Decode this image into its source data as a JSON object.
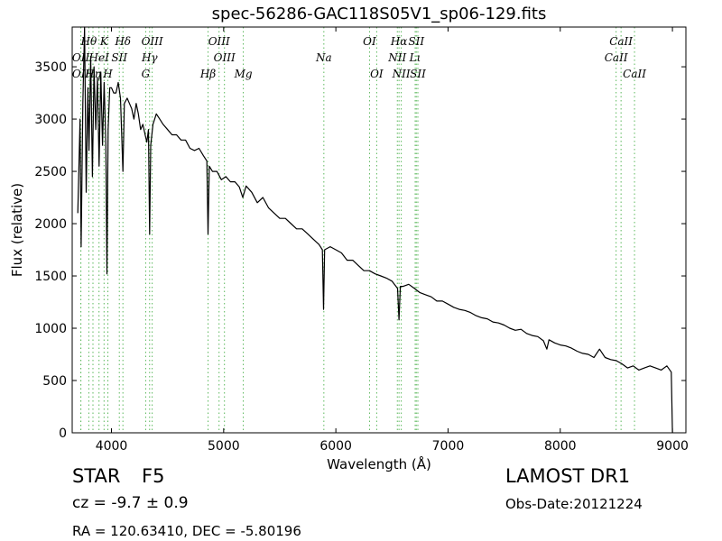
{
  "title": "spec-56286-GAC118S05V1_sp06-129.fits",
  "footer": {
    "object_class": "STAR",
    "subclass": "F5",
    "redshift": "cz = -9.7 ± 0.9",
    "coords": "RA = 120.63410, DEC = -5.80196",
    "survey": "LAMOST DR1",
    "obs_date": "Obs-Date:20121224"
  },
  "chart_data": {
    "type": "line",
    "title": "spec-56286-GAC118S05V1_sp06-129.fits",
    "xlabel": "Wavelength (Å)",
    "ylabel": "Flux (relative)",
    "xlim": [
      3650,
      9120
    ],
    "ylim": [
      0,
      3880
    ],
    "xticks": [
      4000,
      5000,
      6000,
      7000,
      8000,
      9000
    ],
    "yticks": [
      0,
      500,
      1000,
      1500,
      2000,
      2500,
      3000,
      3500
    ],
    "line_color": "#000000",
    "marker_color": "#5cb85c",
    "series": [
      {
        "values": [
          [
            3700,
            2100
          ],
          [
            3720,
            3000
          ],
          [
            3730,
            1780
          ],
          [
            3745,
            3150
          ],
          [
            3760,
            3880
          ],
          [
            3775,
            2300
          ],
          [
            3790,
            3300
          ],
          [
            3800,
            2700
          ],
          [
            3815,
            3600
          ],
          [
            3830,
            2450
          ],
          [
            3845,
            3500
          ],
          [
            3860,
            2900
          ],
          [
            3875,
            3400
          ],
          [
            3890,
            2550
          ],
          [
            3905,
            3450
          ],
          [
            3920,
            2750
          ],
          [
            3935,
            3350
          ],
          [
            3950,
            2750
          ],
          [
            3960,
            1520
          ],
          [
            3970,
            2900
          ],
          [
            3985,
            3300
          ],
          [
            4000,
            3300
          ],
          [
            4020,
            3250
          ],
          [
            4040,
            3250
          ],
          [
            4060,
            3350
          ],
          [
            4080,
            3200
          ],
          [
            4102,
            2500
          ],
          [
            4115,
            3150
          ],
          [
            4140,
            3200
          ],
          [
            4160,
            3150
          ],
          [
            4180,
            3100
          ],
          [
            4200,
            3000
          ],
          [
            4220,
            3150
          ],
          [
            4240,
            3050
          ],
          [
            4260,
            2900
          ],
          [
            4280,
            2950
          ],
          [
            4300,
            2850
          ],
          [
            4315,
            2780
          ],
          [
            4330,
            2900
          ],
          [
            4340,
            1900
          ],
          [
            4350,
            2750
          ],
          [
            4370,
            2950
          ],
          [
            4400,
            3050
          ],
          [
            4430,
            3000
          ],
          [
            4460,
            2950
          ],
          [
            4500,
            2900
          ],
          [
            4540,
            2850
          ],
          [
            4580,
            2850
          ],
          [
            4620,
            2800
          ],
          [
            4660,
            2800
          ],
          [
            4700,
            2720
          ],
          [
            4740,
            2700
          ],
          [
            4780,
            2720
          ],
          [
            4820,
            2650
          ],
          [
            4850,
            2600
          ],
          [
            4861,
            1900
          ],
          [
            4872,
            2550
          ],
          [
            4900,
            2500
          ],
          [
            4940,
            2500
          ],
          [
            4980,
            2420
          ],
          [
            5020,
            2450
          ],
          [
            5060,
            2400
          ],
          [
            5100,
            2400
          ],
          [
            5140,
            2350
          ],
          [
            5170,
            2250
          ],
          [
            5200,
            2360
          ],
          [
            5250,
            2300
          ],
          [
            5300,
            2200
          ],
          [
            5350,
            2250
          ],
          [
            5400,
            2150
          ],
          [
            5450,
            2100
          ],
          [
            5500,
            2050
          ],
          [
            5550,
            2050
          ],
          [
            5600,
            2000
          ],
          [
            5650,
            1950
          ],
          [
            5700,
            1950
          ],
          [
            5750,
            1900
          ],
          [
            5800,
            1850
          ],
          [
            5850,
            1800
          ],
          [
            5880,
            1750
          ],
          [
            5890,
            1180
          ],
          [
            5900,
            1750
          ],
          [
            5950,
            1780
          ],
          [
            6000,
            1750
          ],
          [
            6050,
            1720
          ],
          [
            6100,
            1650
          ],
          [
            6150,
            1650
          ],
          [
            6200,
            1600
          ],
          [
            6250,
            1550
          ],
          [
            6300,
            1550
          ],
          [
            6350,
            1520
          ],
          [
            6400,
            1500
          ],
          [
            6450,
            1480
          ],
          [
            6500,
            1450
          ],
          [
            6550,
            1380
          ],
          [
            6563,
            1080
          ],
          [
            6575,
            1400
          ],
          [
            6600,
            1400
          ],
          [
            6650,
            1420
          ],
          [
            6700,
            1380
          ],
          [
            6750,
            1340
          ],
          [
            6800,
            1320
          ],
          [
            6850,
            1300
          ],
          [
            6900,
            1260
          ],
          [
            6950,
            1260
          ],
          [
            7000,
            1230
          ],
          [
            7050,
            1200
          ],
          [
            7100,
            1180
          ],
          [
            7150,
            1170
          ],
          [
            7200,
            1150
          ],
          [
            7250,
            1120
          ],
          [
            7300,
            1100
          ],
          [
            7350,
            1090
          ],
          [
            7400,
            1060
          ],
          [
            7450,
            1050
          ],
          [
            7500,
            1030
          ],
          [
            7550,
            1000
          ],
          [
            7600,
            980
          ],
          [
            7650,
            990
          ],
          [
            7700,
            950
          ],
          [
            7750,
            930
          ],
          [
            7800,
            920
          ],
          [
            7850,
            880
          ],
          [
            7880,
            800
          ],
          [
            7900,
            890
          ],
          [
            7950,
            860
          ],
          [
            8000,
            840
          ],
          [
            8050,
            830
          ],
          [
            8100,
            810
          ],
          [
            8150,
            780
          ],
          [
            8200,
            760
          ],
          [
            8250,
            750
          ],
          [
            8300,
            720
          ],
          [
            8350,
            800
          ],
          [
            8400,
            720
          ],
          [
            8450,
            700
          ],
          [
            8500,
            690
          ],
          [
            8550,
            660
          ],
          [
            8600,
            620
          ],
          [
            8650,
            640
          ],
          [
            8700,
            600
          ],
          [
            8750,
            620
          ],
          [
            8800,
            640
          ],
          [
            8850,
            620
          ],
          [
            8900,
            600
          ],
          [
            8950,
            640
          ],
          [
            8990,
            580
          ],
          [
            9000,
            0
          ]
        ]
      }
    ],
    "line_markers": [
      {
        "label": "Hθ",
        "x": 3798,
        "row": 0
      },
      {
        "label": "K",
        "x": 3934,
        "row": 0
      },
      {
        "label": "Hδ",
        "x": 4102,
        "row": 0
      },
      {
        "label": "OIII",
        "x": 4363,
        "row": 0
      },
      {
        "label": "OIII",
        "x": 4959,
        "row": 0
      },
      {
        "label": "OI",
        "x": 6300,
        "row": 0
      },
      {
        "label": "Hα",
        "x": 6563,
        "row": 0
      },
      {
        "label": "SII",
        "x": 6717,
        "row": 0
      },
      {
        "label": "CaII",
        "x": 8542,
        "row": 0
      },
      {
        "label": "OII",
        "x": 3727,
        "row": 1
      },
      {
        "label": "HeI",
        "x": 3889,
        "row": 1
      },
      {
        "label": "SII",
        "x": 4070,
        "row": 1
      },
      {
        "label": "Hγ",
        "x": 4340,
        "row": 1
      },
      {
        "label": "OIII",
        "x": 5007,
        "row": 1
      },
      {
        "label": "Na",
        "x": 5893,
        "row": 1
      },
      {
        "label": "NII",
        "x": 6548,
        "row": 1
      },
      {
        "label": "Lι",
        "x": 6707,
        "row": 1
      },
      {
        "label": "CaII",
        "x": 8498,
        "row": 1
      },
      {
        "label": "OII",
        "x": 3727,
        "row": 2
      },
      {
        "label": "Hη",
        "x": 3835,
        "row": 2
      },
      {
        "label": "H",
        "x": 3968,
        "row": 2
      },
      {
        "label": "G",
        "x": 4305,
        "row": 2
      },
      {
        "label": "Hβ",
        "x": 4861,
        "row": 2
      },
      {
        "label": "Mg",
        "x": 5175,
        "row": 2
      },
      {
        "label": "OI",
        "x": 6364,
        "row": 2
      },
      {
        "label": "NII",
        "x": 6583,
        "row": 2
      },
      {
        "label": "SII",
        "x": 6731,
        "row": 2
      },
      {
        "label": "CaII",
        "x": 8662,
        "row": 2
      }
    ]
  }
}
